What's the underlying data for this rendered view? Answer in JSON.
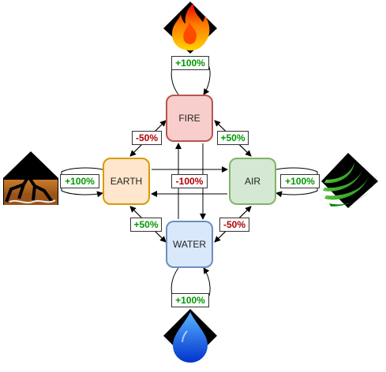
{
  "colors": {
    "fire_fill": "#f8cecc",
    "fire_stroke": "#b85450",
    "earth_fill": "#ffe6cc",
    "earth_stroke": "#d79b00",
    "air_fill": "#d5e8d4",
    "air_stroke": "#82b366",
    "water_fill": "#dae8fc",
    "water_stroke": "#6c8ebf",
    "positive": "#009900",
    "negative": "#b20000"
  },
  "nodes": {
    "fire": "FIRE",
    "earth": "EARTH",
    "air": "AIR",
    "water": "WATER"
  },
  "labels": {
    "fire_self": "+100%",
    "earth_self": "+100%",
    "air_self": "+100%",
    "water_self": "+100%",
    "fire_earth": "-50%",
    "fire_air": "+50%",
    "earth_water": "+50%",
    "air_water": "-50%",
    "center": "-100%"
  },
  "icons": {
    "fire": "flame-icon",
    "earth": "cracked-earth-icon",
    "air": "wind-swirl-icon",
    "water": "water-drop-icon"
  }
}
